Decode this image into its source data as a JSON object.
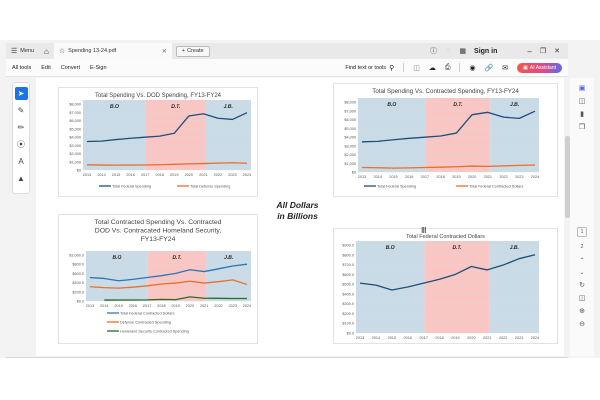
{
  "window": {
    "menu_label": "Menu",
    "tab_title": "Spending 13-24.pdf",
    "create_label": "Create",
    "sign_in": "Sign in",
    "icons": [
      "help-icon",
      "bell-icon",
      "apps-icon",
      "minimize-icon",
      "maximize-icon",
      "close-icon"
    ]
  },
  "toolbar": {
    "items": [
      "All tools",
      "Edit",
      "Convert",
      "E-Sign"
    ],
    "search_label": "Find text or tools",
    "ai_label": "AI Assistant"
  },
  "left_tools": [
    "select-tool",
    "comment-tool",
    "draw-tool",
    "lasso-tool",
    "text-tool",
    "stamp-tool"
  ],
  "right_rail": {
    "pages": [
      "1",
      "2"
    ],
    "current_page": "1"
  },
  "page": {
    "note_line1": "All Dollars",
    "note_line2": "in Billions"
  },
  "chart_data": [
    {
      "type": "line",
      "title": "Total Spending Vs. DOD Spending, FY13-FY24",
      "x": [
        "2013",
        "2014",
        "2015",
        "2016",
        "2017",
        "2018",
        "2019",
        "2020",
        "2021",
        "2022",
        "2023",
        "2024"
      ],
      "ylim": [
        0,
        8000
      ],
      "yticks": [
        "$0",
        "$1,000",
        "$2,000",
        "$3,000",
        "$4,000",
        "$5,000",
        "$6,000",
        "$7,000",
        "$8,000"
      ],
      "regions": [
        {
          "label": "B.O",
          "from": "2013",
          "to": "2017",
          "color": "#c9dbe6"
        },
        {
          "label": "D.T.",
          "from": "2017",
          "to": "2021",
          "color": "#f9c6c3"
        },
        {
          "label": "J.B.",
          "from": "2021",
          "to": "2024",
          "color": "#c9dbe6"
        }
      ],
      "series": [
        {
          "name": "Total Federal Spending",
          "color": "#1f4e79",
          "values": [
            3450,
            3500,
            3690,
            3850,
            3980,
            4110,
            4450,
            6550,
            6820,
            6270,
            6130,
            6950
          ]
        },
        {
          "name": "Total Defense Spending",
          "color": "#e8702a",
          "values": [
            630,
            600,
            590,
            600,
            610,
            640,
            690,
            740,
            780,
            830,
            880,
            820
          ]
        }
      ],
      "legend": "bottom"
    },
    {
      "type": "line",
      "title": "Total Spending Vs. Contracted Spending, FY13-FY24",
      "x": [
        "2013",
        "2014",
        "2015",
        "2016",
        "2017",
        "2018",
        "2019",
        "2020",
        "2021",
        "2022",
        "2023",
        "2024"
      ],
      "ylim": [
        0,
        8000
      ],
      "yticks": [
        "$0",
        "$1,000",
        "$2,000",
        "$3,000",
        "$4,000",
        "$5,000",
        "$6,000",
        "$7,000",
        "$8,000"
      ],
      "regions": [
        {
          "label": "B.O",
          "from": "2013",
          "to": "2017",
          "color": "#c9dbe6"
        },
        {
          "label": "D.T.",
          "from": "2017",
          "to": "2021",
          "color": "#f9c6c3"
        },
        {
          "label": "J.B.",
          "from": "2021",
          "to": "2024",
          "color": "#c9dbe6"
        }
      ],
      "series": [
        {
          "name": "Total Federal Spending",
          "color": "#1f4e79",
          "values": [
            3450,
            3500,
            3690,
            3850,
            3980,
            4110,
            4450,
            6550,
            6820,
            6270,
            6130,
            6950
          ]
        },
        {
          "name": "Total Federal Contracted Dollars",
          "color": "#e8702a",
          "values": [
            510,
            490,
            440,
            470,
            510,
            550,
            600,
            680,
            640,
            700,
            760,
            800
          ]
        }
      ],
      "legend": "bottom"
    },
    {
      "type": "line",
      "title": "Total Contracted Spending Vs. Contracted DOD Vs. Contracated Homeland Security, FY13-FY24",
      "x": [
        "2013",
        "2014",
        "2015",
        "2016",
        "2017",
        "2018",
        "2019",
        "2020",
        "2021",
        "2022",
        "2023",
        "2024"
      ],
      "ylim": [
        0,
        1000
      ],
      "yticks": [
        "$0.0",
        "$200.0",
        "$400.0",
        "$600.0",
        "$800.0",
        "$1,000.0"
      ],
      "regions": [
        {
          "label": "B.O",
          "from": "2013",
          "to": "2017",
          "color": "#c9dbe6"
        },
        {
          "label": "D.T.",
          "from": "2017",
          "to": "2021",
          "color": "#f9c6c3"
        },
        {
          "label": "J.B.",
          "from": "2021",
          "to": "2024",
          "color": "#c9dbe6"
        }
      ],
      "series": [
        {
          "name": "Total Federal Contracted Dollars",
          "color": "#2e75b6",
          "values": [
            510,
            490,
            440,
            470,
            510,
            550,
            600,
            680,
            640,
            700,
            760,
            800
          ]
        },
        {
          "name": "Defense Contracted Spending",
          "color": "#e8702a",
          "values": [
            310,
            290,
            280,
            300,
            330,
            370,
            390,
            430,
            390,
            420,
            460,
            360
          ]
        },
        {
          "name": "Homeland Security Contracted Spending",
          "color": "#2a6b2a",
          "values": [
            null,
            20,
            22,
            22,
            25,
            35,
            30,
            90,
            60,
            58,
            55,
            55
          ]
        }
      ],
      "legend": "bottom"
    },
    {
      "type": "line",
      "title": "Total Federal Contracted Dollars",
      "x": [
        "2013",
        "2014",
        "2015",
        "2016",
        "2017",
        "2018",
        "2019",
        "2020",
        "2021",
        "2022",
        "2023",
        "2024"
      ],
      "ylim": [
        0,
        900
      ],
      "yticks": [
        "$0.0",
        "$100.0",
        "$200.0",
        "$300.0",
        "$400.0",
        "$500.0",
        "$600.0",
        "$700.0",
        "$800.0",
        "$900.0"
      ],
      "regions": [
        {
          "label": "B.O",
          "from": "2013",
          "to": "2017",
          "color": "#c9dbe6"
        },
        {
          "label": "D.T.",
          "from": "2017",
          "to": "2021",
          "color": "#f9c6c3"
        },
        {
          "label": "J.B.",
          "from": "2021",
          "to": "2024",
          "color": "#c9dbe6"
        }
      ],
      "series": [
        {
          "name": "Total Federal Contracted Dollars",
          "color": "#1f4e79",
          "values": [
            510,
            490,
            440,
            470,
            510,
            550,
            600,
            680,
            645,
            695,
            760,
            800
          ]
        }
      ],
      "legend": "none"
    }
  ]
}
